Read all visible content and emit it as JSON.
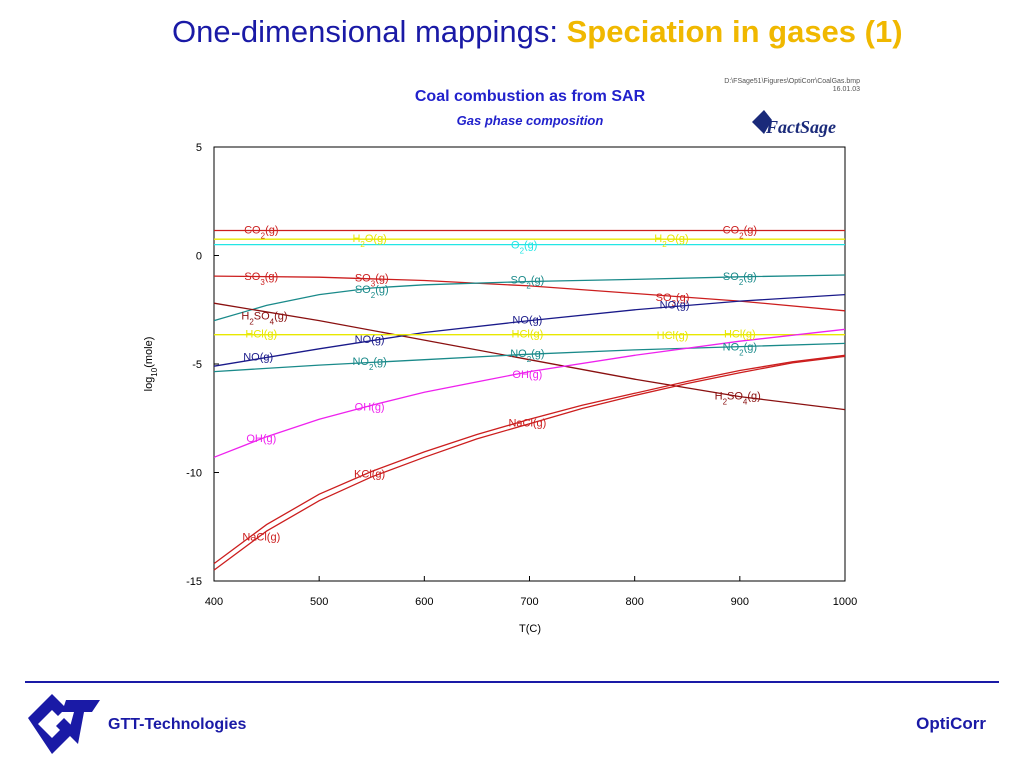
{
  "slide": {
    "title_plain": "One-dimensional mappings: ",
    "title_highlight": "Speciation in gases (1)"
  },
  "footer": {
    "company": "GTT-Technologies",
    "product": "OptiCorr"
  },
  "chart_data": {
    "type": "line",
    "title": "Coal combustion as from SAR",
    "subtitle": "Gas phase composition",
    "file_path_line1": "D:\\FSage51\\Figures\\OptiCorr\\CoalGas.bmp",
    "file_path_line2": "16.01.03",
    "brand_logo": "FactSage",
    "xlabel": "T(C)",
    "ylabel_parts": {
      "prefix": "log",
      "sub": "10",
      "suffix": "(mole)"
    },
    "xlim": [
      400,
      1000
    ],
    "ylim": [
      -15,
      5
    ],
    "xticks": [
      400,
      500,
      600,
      700,
      800,
      900,
      1000
    ],
    "yticks": [
      5,
      0,
      -5,
      -10,
      -15
    ],
    "grid": false,
    "legend": "inline labels",
    "series": [
      {
        "name": "CO2(g)",
        "color": "#cc1e1e",
        "x": [
          400,
          1000
        ],
        "y": [
          1.15,
          1.15
        ]
      },
      {
        "name": "H2O(g)",
        "color": "#e8e800",
        "x": [
          400,
          1000
        ],
        "y": [
          0.75,
          0.75
        ]
      },
      {
        "name": "O2(g)",
        "color": "#22e6e6",
        "x": [
          400,
          1000
        ],
        "y": [
          0.5,
          0.5
        ]
      },
      {
        "name": "SO3(g)",
        "color": "#cc1e1e",
        "x": [
          400,
          500,
          600,
          700,
          800,
          900,
          1000
        ],
        "y": [
          -0.95,
          -1.0,
          -1.15,
          -1.4,
          -1.75,
          -2.1,
          -2.55
        ]
      },
      {
        "name": "SO2(g)",
        "color": "#1a8a8a",
        "x": [
          400,
          450,
          500,
          550,
          600,
          700,
          800,
          900,
          1000
        ],
        "y": [
          -3.0,
          -2.3,
          -1.8,
          -1.5,
          -1.35,
          -1.2,
          -1.1,
          -0.98,
          -0.9
        ]
      },
      {
        "name": "H2SO4(g)",
        "color": "#8a1010",
        "x": [
          400,
          500,
          600,
          700,
          800,
          900,
          1000
        ],
        "y": [
          -2.2,
          -3.0,
          -3.9,
          -4.8,
          -5.7,
          -6.5,
          -7.1
        ]
      },
      {
        "name": "NO(g)",
        "color": "#1a1a8a",
        "x": [
          400,
          500,
          600,
          700,
          800,
          900,
          1000
        ],
        "y": [
          -5.1,
          -4.3,
          -3.55,
          -3.0,
          -2.5,
          -2.1,
          -1.8
        ]
      },
      {
        "name": "HCl(g)",
        "color": "#e8e800",
        "x": [
          400,
          1000
        ],
        "y": [
          -3.65,
          -3.65
        ]
      },
      {
        "name": "NO2(g)",
        "color": "#1a8a8a",
        "x": [
          400,
          500,
          600,
          700,
          800,
          900,
          1000
        ],
        "y": [
          -5.35,
          -5.05,
          -4.8,
          -4.55,
          -4.35,
          -4.2,
          -4.05
        ]
      },
      {
        "name": "OH(g)",
        "color": "#ee22ee",
        "x": [
          400,
          450,
          500,
          550,
          600,
          700,
          800,
          900,
          1000
        ],
        "y": [
          -9.3,
          -8.35,
          -7.55,
          -6.9,
          -6.3,
          -5.35,
          -4.6,
          -3.95,
          -3.4
        ]
      },
      {
        "name": "KCl(g)",
        "color": "#cc1e1e",
        "x": [
          400,
          450,
          500,
          550,
          600,
          650,
          700,
          750,
          800,
          850,
          900,
          950,
          1000
        ],
        "y": [
          -14.2,
          -12.4,
          -11.0,
          -9.95,
          -9.05,
          -8.25,
          -7.55,
          -6.9,
          -6.35,
          -5.8,
          -5.3,
          -4.9,
          -4.6
        ]
      },
      {
        "name": "NaCl(g)",
        "color": "#cc1e1e",
        "x": [
          400,
          450,
          500,
          550,
          600,
          650,
          700,
          750,
          800,
          850,
          900,
          950,
          1000
        ],
        "y": [
          -14.5,
          -12.7,
          -11.3,
          -10.2,
          -9.3,
          -8.45,
          -7.75,
          -7.05,
          -6.45,
          -5.9,
          -5.4,
          -4.95,
          -4.65
        ]
      }
    ],
    "labels": [
      {
        "text": "CO",
        "sub": "2",
        "tail": "(g)",
        "x": 445,
        "y": 1.15,
        "color": "#cc1e1e"
      },
      {
        "text": "CO",
        "sub": "2",
        "tail": "(g)",
        "x": 900,
        "y": 1.15,
        "color": "#cc1e1e"
      },
      {
        "text": "H",
        "sub": "2",
        "tail": "O(g)",
        "x": 548,
        "y": 0.75,
        "color": "#e8e800"
      },
      {
        "text": "H",
        "sub": "2",
        "tail": "O(g)",
        "x": 835,
        "y": 0.75,
        "color": "#e8e800"
      },
      {
        "text": "O",
        "sub": "2",
        "tail": "(g)",
        "x": 695,
        "y": 0.45,
        "color": "#22e6e6"
      },
      {
        "text": "SO",
        "sub": "3",
        "tail": "(g)",
        "x": 445,
        "y": -1.0,
        "color": "#cc1e1e"
      },
      {
        "text": "SO",
        "sub": "3",
        "tail": "(g)",
        "x": 550,
        "y": -1.05,
        "color": "#cc1e1e"
      },
      {
        "text": "SO",
        "sub": "2",
        "tail": "(g)",
        "x": 550,
        "y": -1.6,
        "color": "#1a8a8a"
      },
      {
        "text": "SO",
        "sub": "2",
        "tail": "(g)",
        "x": 698,
        "y": -1.15,
        "color": "#1a8a8a"
      },
      {
        "text": "SO",
        "sub": "2",
        "tail": "(g)",
        "x": 900,
        "y": -0.98,
        "color": "#1a8a8a"
      },
      {
        "text": "SO",
        "sub": "3",
        "tail": "(g)",
        "x": 836,
        "y": -1.95,
        "color": "#cc1e1e"
      },
      {
        "text": "H",
        "sub": "2",
        "tail": "SO",
        "sub2": "4",
        "tail2": "(g)",
        "x": 448,
        "y": -2.8,
        "color": "#8a1010"
      },
      {
        "text": "H",
        "sub": "2",
        "tail": "SO",
        "sub2": "4",
        "tail2": "(g)",
        "x": 898,
        "y": -6.5,
        "color": "#8a1010"
      },
      {
        "text": "NO(g)",
        "x": 698,
        "y": -3.0,
        "color": "#1a1a8a"
      },
      {
        "text": "NO(g)",
        "x": 838,
        "y": -2.3,
        "color": "#1a1a8a"
      },
      {
        "text": "NO(g)",
        "x": 548,
        "y": -3.9,
        "color": "#1a1a8a"
      },
      {
        "text": "NO(g)",
        "x": 442,
        "y": -4.7,
        "color": "#1a1a8a"
      },
      {
        "text": "HCl(g)",
        "x": 445,
        "y": -3.65,
        "color": "#e8e800"
      },
      {
        "text": "HCl(g)",
        "x": 698,
        "y": -3.65,
        "color": "#e8e800"
      },
      {
        "text": "HCl(g)",
        "x": 836,
        "y": -3.7,
        "color": "#e8e800"
      },
      {
        "text": "HCl(g)",
        "x": 900,
        "y": -3.65,
        "color": "#e8e800"
      },
      {
        "text": "NO",
        "sub": "2",
        "tail": "(g)",
        "x": 548,
        "y": -4.9,
        "color": "#1a8a8a"
      },
      {
        "text": "NO",
        "sub": "2",
        "tail": "(g)",
        "x": 698,
        "y": -4.55,
        "color": "#1a8a8a"
      },
      {
        "text": "NO",
        "sub": "2",
        "tail": "(g)",
        "x": 900,
        "y": -4.25,
        "color": "#1a8a8a"
      },
      {
        "text": "OH(g)",
        "x": 698,
        "y": -5.5,
        "color": "#ee22ee"
      },
      {
        "text": "OH(g)",
        "x": 548,
        "y": -7.0,
        "color": "#ee22ee"
      },
      {
        "text": "OH(g)",
        "x": 445,
        "y": -8.45,
        "color": "#ee22ee"
      },
      {
        "text": "NaCl(g)",
        "x": 698,
        "y": -7.75,
        "color": "#cc1e1e"
      },
      {
        "text": "KCl(g)",
        "x": 548,
        "y": -10.1,
        "color": "#cc1e1e"
      },
      {
        "text": "NaCl(g)",
        "x": 445,
        "y": -13.0,
        "color": "#cc1e1e"
      }
    ]
  }
}
